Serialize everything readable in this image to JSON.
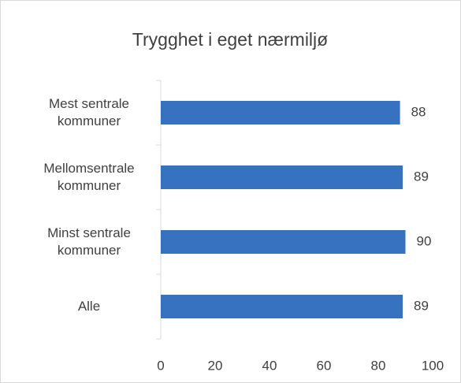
{
  "chart_data": {
    "type": "bar",
    "orientation": "horizontal",
    "title": "Trygghet i eget nærmiljø",
    "categories": [
      "Mest sentrale kommuner",
      "Mellomsentrale kommuner",
      "Minst sentrale kommuner",
      "Alle"
    ],
    "values": [
      88,
      89,
      90,
      89
    ],
    "color": "#3672bf",
    "xlim": [
      0,
      100
    ],
    "xticks": [
      0,
      20,
      40,
      60,
      80,
      100
    ],
    "grid": false
  }
}
